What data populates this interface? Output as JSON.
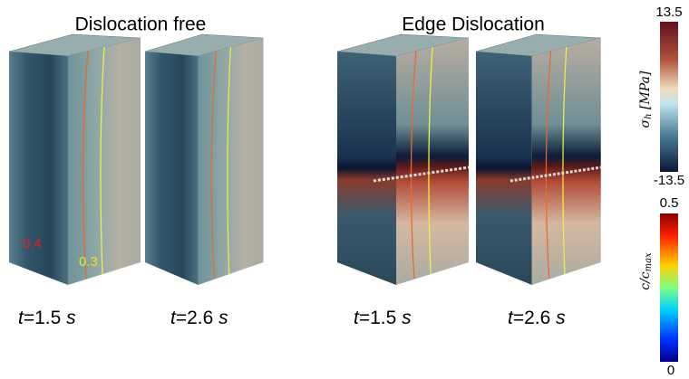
{
  "titles": [
    "Dislocation free",
    "Edge Dislocation"
  ],
  "panels": [
    {
      "time": {
        "var": "t",
        "value": "=1.5 ",
        "unit": "s"
      }
    },
    {
      "time": {
        "var": "t",
        "value": "=2.6 ",
        "unit": "s"
      }
    },
    {
      "time": {
        "var": "t",
        "value": "=1.5 ",
        "unit": "s"
      }
    },
    {
      "time": {
        "var": "t",
        "value": "=2.6 ",
        "unit": "s"
      }
    }
  ],
  "contour_labels": [
    "0.4",
    "0.3"
  ],
  "stress_colorbar": {
    "max": "13.5",
    "min": "-13.5",
    "symbol": "σ",
    "sub": "h",
    "unit": " [MPa]"
  },
  "conc_colorbar": {
    "max": "0.5",
    "min": "0",
    "symbol": "c/c",
    "sub": "max"
  }
}
